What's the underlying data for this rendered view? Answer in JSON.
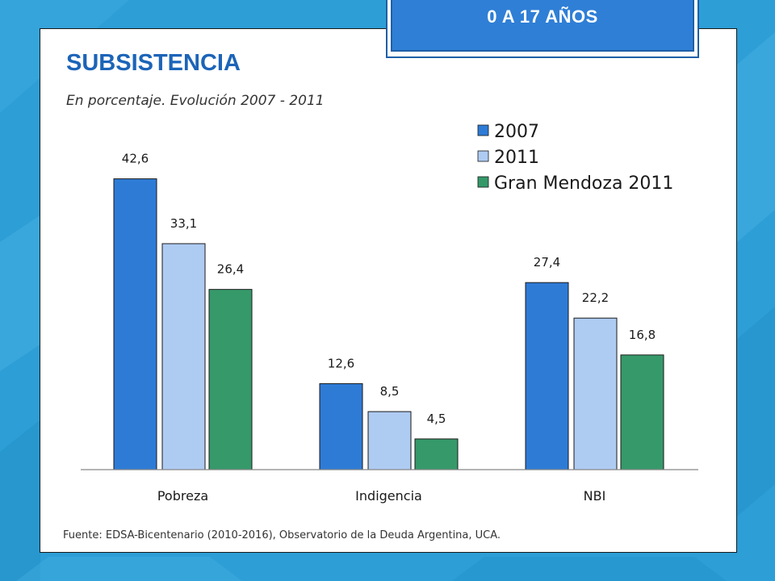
{
  "badge": "0 A 17 AÑOS",
  "title": "SUBSISTENCIA",
  "subtitle": "En porcentaje. Evolución 2007 - 2011",
  "source": "Fuente: EDSA-Bicentenario (2010-2016), Observatorio de la Deuda Argentina, UCA.",
  "colors": {
    "background": "#2d9ed6",
    "title": "#1c64b8",
    "badge": "#2f7fd6",
    "s2007": "#2e7bd6",
    "s2011": "#aecbf2",
    "gran_mendoza": "#36996a"
  },
  "chart_data": {
    "type": "bar",
    "categories": [
      "Pobreza",
      "Indigencia",
      "NBI"
    ],
    "series": [
      {
        "name": "2007",
        "values": [
          42.6,
          12.6,
          27.4
        ],
        "labels": [
          "42,6",
          "12,6",
          "27,4"
        ],
        "color": "#2e7bd6"
      },
      {
        "name": "2011",
        "values": [
          33.1,
          8.5,
          22.2
        ],
        "labels": [
          "33,1",
          "8,5",
          "22,2"
        ],
        "color": "#aecbf2"
      },
      {
        "name": "Gran Mendoza 2011",
        "values": [
          26.4,
          4.5,
          16.8
        ],
        "labels": [
          "26,4",
          "4,5",
          "16,8"
        ],
        "color": "#36996a"
      }
    ],
    "ylim": [
      0,
      50
    ],
    "grid": false,
    "legend": "top-right",
    "data_labels": true
  }
}
